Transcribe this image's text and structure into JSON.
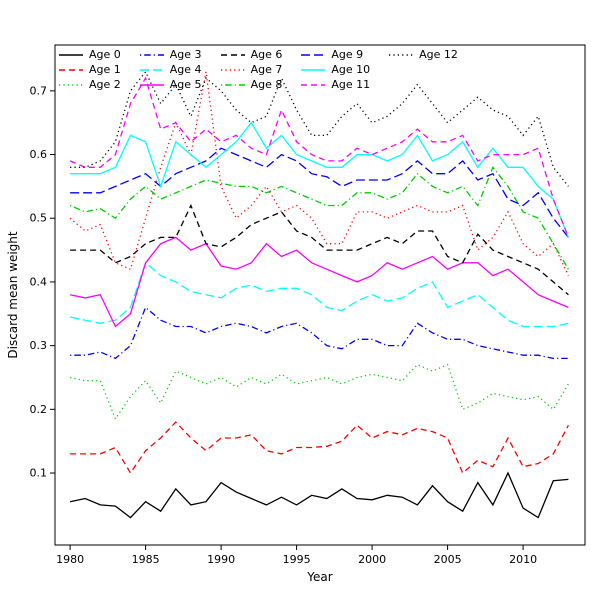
{
  "chart_data": {
    "type": "line",
    "title": "",
    "xlabel": "Year",
    "ylabel": "Discard mean weight",
    "xlim": [
      1979,
      2014.1
    ],
    "ylim": [
      -0.013,
      0.772
    ],
    "xticks": [
      1980,
      1985,
      1990,
      1995,
      2000,
      2005,
      2010
    ],
    "yticks": [
      0.1,
      0.2,
      0.3,
      0.4,
      0.5,
      0.6,
      0.7
    ],
    "grid": false,
    "legend_position": "top-inside",
    "legend_columns": 5,
    "x": [
      1980,
      1981,
      1982,
      1983,
      1984,
      1985,
      1986,
      1987,
      1988,
      1989,
      1990,
      1991,
      1992,
      1993,
      1994,
      1995,
      1996,
      1997,
      1998,
      1999,
      2000,
      2001,
      2002,
      2003,
      2004,
      2005,
      2006,
      2007,
      2008,
      2009,
      2010,
      2011,
      2012,
      2013
    ],
    "series": [
      {
        "name": "Age 0",
        "color": "#000000",
        "linestyle": "solid",
        "values": [
          0.055,
          0.06,
          0.05,
          0.048,
          0.03,
          0.055,
          0.04,
          0.075,
          0.05,
          0.055,
          0.085,
          0.07,
          0.06,
          0.05,
          0.062,
          0.05,
          0.065,
          0.06,
          0.075,
          0.06,
          0.058,
          0.065,
          0.062,
          0.05,
          0.08,
          0.055,
          0.04,
          0.085,
          0.05,
          0.1,
          0.045,
          0.03,
          0.088,
          0.09
        ]
      },
      {
        "name": "Age 1",
        "color": "#FF0000",
        "linestyle": "dashed",
        "values": [
          0.13,
          0.13,
          0.13,
          0.14,
          0.1,
          0.135,
          0.155,
          0.18,
          0.155,
          0.135,
          0.155,
          0.155,
          0.16,
          0.135,
          0.13,
          0.14,
          0.14,
          0.142,
          0.15,
          0.175,
          0.155,
          0.165,
          0.16,
          0.17,
          0.165,
          0.155,
          0.1,
          0.12,
          0.11,
          0.155,
          0.11,
          0.115,
          0.13,
          0.175
        ]
      },
      {
        "name": "Age 2",
        "color": "#00CD00",
        "linestyle": "dotted",
        "values": [
          0.25,
          0.245,
          0.245,
          0.185,
          0.22,
          0.245,
          0.21,
          0.26,
          0.25,
          0.24,
          0.25,
          0.235,
          0.25,
          0.24,
          0.255,
          0.24,
          0.245,
          0.25,
          0.24,
          0.25,
          0.255,
          0.25,
          0.245,
          0.27,
          0.26,
          0.27,
          0.2,
          0.21,
          0.225,
          0.22,
          0.215,
          0.22,
          0.2,
          0.24
        ]
      },
      {
        "name": "Age 3",
        "color": "#0000FF",
        "linestyle": "dashdot",
        "values": [
          0.285,
          0.285,
          0.29,
          0.28,
          0.3,
          0.36,
          0.34,
          0.33,
          0.33,
          0.32,
          0.33,
          0.335,
          0.33,
          0.32,
          0.33,
          0.335,
          0.32,
          0.3,
          0.295,
          0.31,
          0.31,
          0.3,
          0.3,
          0.335,
          0.32,
          0.31,
          0.31,
          0.3,
          0.295,
          0.29,
          0.285,
          0.285,
          0.28,
          0.28
        ]
      },
      {
        "name": "Age 4",
        "color": "#00FFFF",
        "linestyle": "longdash",
        "values": [
          0.345,
          0.34,
          0.335,
          0.34,
          0.36,
          0.43,
          0.41,
          0.4,
          0.385,
          0.38,
          0.375,
          0.39,
          0.395,
          0.385,
          0.39,
          0.39,
          0.38,
          0.36,
          0.355,
          0.37,
          0.38,
          0.37,
          0.375,
          0.39,
          0.4,
          0.36,
          0.37,
          0.38,
          0.36,
          0.34,
          0.33,
          0.33,
          0.33,
          0.335
        ]
      },
      {
        "name": "Age 5",
        "color": "#FF00FF",
        "linestyle": "solid",
        "values": [
          0.38,
          0.375,
          0.38,
          0.33,
          0.35,
          0.43,
          0.46,
          0.47,
          0.45,
          0.46,
          0.425,
          0.42,
          0.43,
          0.46,
          0.44,
          0.45,
          0.43,
          0.42,
          0.41,
          0.4,
          0.41,
          0.43,
          0.42,
          0.43,
          0.44,
          0.42,
          0.43,
          0.43,
          0.41,
          0.42,
          0.4,
          0.38,
          0.37,
          0.36
        ]
      },
      {
        "name": "Age 6",
        "color": "#000000",
        "linestyle": "dashed",
        "values": [
          0.45,
          0.45,
          0.45,
          0.43,
          0.44,
          0.46,
          0.47,
          0.47,
          0.52,
          0.46,
          0.455,
          0.47,
          0.49,
          0.5,
          0.51,
          0.48,
          0.47,
          0.45,
          0.45,
          0.45,
          0.46,
          0.47,
          0.46,
          0.48,
          0.48,
          0.44,
          0.43,
          0.475,
          0.45,
          0.44,
          0.43,
          0.42,
          0.4,
          0.38
        ]
      },
      {
        "name": "Age 7",
        "color": "#FF0000",
        "linestyle": "dotted",
        "values": [
          0.5,
          0.48,
          0.49,
          0.43,
          0.42,
          0.5,
          0.58,
          0.65,
          0.6,
          0.73,
          0.55,
          0.5,
          0.52,
          0.55,
          0.51,
          0.52,
          0.5,
          0.46,
          0.46,
          0.51,
          0.51,
          0.5,
          0.51,
          0.52,
          0.51,
          0.51,
          0.52,
          0.45,
          0.47,
          0.51,
          0.46,
          0.44,
          0.46,
          0.41
        ]
      },
      {
        "name": "Age 8",
        "color": "#00CD00",
        "linestyle": "dashdot",
        "values": [
          0.52,
          0.51,
          0.515,
          0.5,
          0.53,
          0.55,
          0.53,
          0.54,
          0.55,
          0.56,
          0.555,
          0.55,
          0.55,
          0.54,
          0.55,
          0.54,
          0.53,
          0.52,
          0.52,
          0.54,
          0.54,
          0.53,
          0.54,
          0.57,
          0.55,
          0.54,
          0.55,
          0.52,
          0.58,
          0.55,
          0.51,
          0.5,
          0.46,
          0.42
        ]
      },
      {
        "name": "Age 9",
        "color": "#0000FF",
        "linestyle": "longdash",
        "values": [
          0.54,
          0.54,
          0.54,
          0.55,
          0.56,
          0.57,
          0.55,
          0.57,
          0.58,
          0.59,
          0.61,
          0.6,
          0.59,
          0.58,
          0.6,
          0.59,
          0.57,
          0.565,
          0.55,
          0.56,
          0.56,
          0.56,
          0.57,
          0.59,
          0.57,
          0.57,
          0.59,
          0.56,
          0.57,
          0.53,
          0.52,
          0.54,
          0.5,
          0.47
        ]
      },
      {
        "name": "Age 10",
        "color": "#00FFFF",
        "linestyle": "solid",
        "values": [
          0.57,
          0.57,
          0.57,
          0.58,
          0.63,
          0.62,
          0.55,
          0.62,
          0.6,
          0.58,
          0.6,
          0.62,
          0.65,
          0.61,
          0.63,
          0.6,
          0.59,
          0.58,
          0.58,
          0.6,
          0.6,
          0.59,
          0.6,
          0.63,
          0.59,
          0.6,
          0.62,
          0.58,
          0.61,
          0.58,
          0.58,
          0.55,
          0.53,
          0.47
        ]
      },
      {
        "name": "Age 11",
        "color": "#FF00FF",
        "linestyle": "dashed",
        "values": [
          0.59,
          0.58,
          0.58,
          0.6,
          0.68,
          0.72,
          0.64,
          0.65,
          0.62,
          0.64,
          0.62,
          0.63,
          0.61,
          0.6,
          0.67,
          0.62,
          0.6,
          0.59,
          0.59,
          0.61,
          0.6,
          0.61,
          0.62,
          0.64,
          0.62,
          0.62,
          0.63,
          0.59,
          0.6,
          0.6,
          0.6,
          0.61,
          0.53,
          0.47
        ]
      },
      {
        "name": "Age 12",
        "color": "#000000",
        "linestyle": "dotted",
        "values": [
          0.58,
          0.58,
          0.59,
          0.62,
          0.7,
          0.73,
          0.68,
          0.71,
          0.66,
          0.72,
          0.7,
          0.67,
          0.65,
          0.66,
          0.72,
          0.67,
          0.63,
          0.63,
          0.66,
          0.68,
          0.65,
          0.66,
          0.68,
          0.71,
          0.68,
          0.65,
          0.67,
          0.69,
          0.67,
          0.66,
          0.63,
          0.66,
          0.58,
          0.55
        ]
      }
    ]
  }
}
